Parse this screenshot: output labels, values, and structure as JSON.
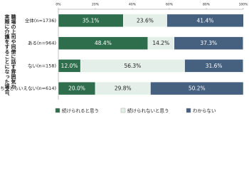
{
  "chart_data": {
    "type": "stacked-bar-horizontal",
    "ylabel_lines": [
      "実際に介護をすることになった場合、",
      "職場の上司や同僚に話す雰囲気か"
    ],
    "categories": [
      "全体(n=1736)",
      "ある(n=964)",
      "ない(n=158)",
      "どちらともいえない(n=614)"
    ],
    "series": [
      {
        "name": "続けられると思う",
        "color": "#2f6e4c",
        "label_color": "#ffffff",
        "values": [
          35.1,
          48.4,
          12.0,
          20.0
        ],
        "value_labels": [
          "35.1%",
          "48.4%",
          "12.0%",
          "20.0%"
        ]
      },
      {
        "name": "続けられないと思う",
        "color": "#e3efe8",
        "label_color": "#222222",
        "values": [
          23.6,
          14.2,
          56.3,
          29.8
        ],
        "value_labels": [
          "23.6%",
          "14.2%",
          "56.3%",
          "29.8%"
        ]
      },
      {
        "name": "わからない",
        "color": "#46607f",
        "label_color": "#ffffff",
        "values": [
          41.4,
          37.3,
          31.6,
          50.2
        ],
        "value_labels": [
          "41.4%",
          "37.3%",
          "31.6%",
          "50.2%"
        ]
      }
    ],
    "xlim": [
      0,
      100
    ],
    "xticks": [
      {
        "value": 0,
        "label": "0%"
      },
      {
        "value": 20,
        "label": "20%"
      },
      {
        "value": 40,
        "label": "40%"
      },
      {
        "value": 60,
        "label": "60%"
      },
      {
        "value": 80,
        "label": "80%"
      },
      {
        "value": 100,
        "label": "100%"
      }
    ],
    "legend": "bottom"
  }
}
